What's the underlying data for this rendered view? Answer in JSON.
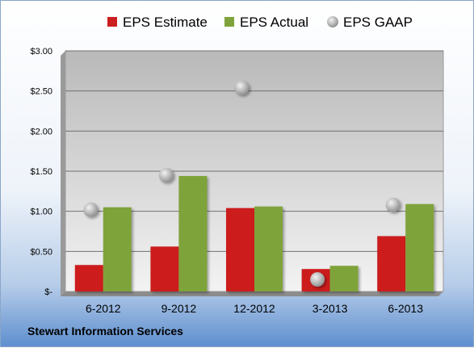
{
  "company": "Stewart Information Services",
  "chart_data": {
    "type": "bar",
    "categories": [
      "6-2012",
      "9-2012",
      "12-2012",
      "3-2013",
      "6-2013"
    ],
    "series": [
      {
        "name": "EPS Estimate",
        "kind": "bar",
        "color": "#cc1f1f",
        "values": [
          0.33,
          0.56,
          1.04,
          0.28,
          0.69
        ]
      },
      {
        "name": "EPS Actual",
        "kind": "bar",
        "color": "#7fa33b",
        "values": [
          1.05,
          1.44,
          1.06,
          0.32,
          1.09
        ]
      },
      {
        "name": "EPS GAAP",
        "kind": "marker",
        "color": "#b8b8b8",
        "values": [
          1.02,
          1.45,
          2.54,
          0.15,
          1.08
        ]
      }
    ],
    "y_ticks": [
      "$-",
      "$0.50",
      "$1.00",
      "$1.50",
      "$2.00",
      "$2.50",
      "$3.00"
    ],
    "ylim": [
      0,
      3
    ],
    "ystep": 0.5,
    "grid": true,
    "legend_position": "top"
  }
}
